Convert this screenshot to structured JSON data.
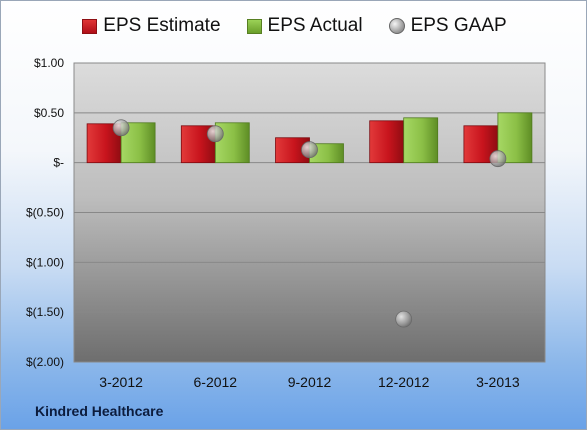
{
  "chart_data": {
    "type": "bar",
    "categories": [
      "3-2012",
      "6-2012",
      "9-2012",
      "12-2012",
      "3-2013"
    ],
    "series": [
      {
        "name": "EPS Estimate",
        "kind": "bar",
        "color": "#c8141d",
        "values": [
          0.39,
          0.37,
          0.25,
          0.42,
          0.37
        ]
      },
      {
        "name": "EPS Actual",
        "kind": "bar",
        "color": "#8bbf46",
        "values": [
          0.4,
          0.4,
          0.19,
          0.45,
          0.5
        ]
      },
      {
        "name": "EPS GAAP",
        "kind": "marker",
        "color": "#a0a0a0",
        "values": [
          0.35,
          0.29,
          0.13,
          -1.57,
          0.04
        ]
      }
    ],
    "ylim": [
      -2.0,
      1.0
    ],
    "yticks": [
      1.0,
      0.5,
      0.0,
      -0.5,
      -1.0,
      -1.5,
      -2.0
    ],
    "ytick_labels": [
      "$1.00",
      "$0.50",
      "$-",
      "$(0.50)",
      "$(1.00)",
      "$(1.50)",
      "$(2.00)"
    ],
    "grid": true,
    "legend_position": "top"
  },
  "footer": {
    "company": "Kindred Healthcare"
  }
}
